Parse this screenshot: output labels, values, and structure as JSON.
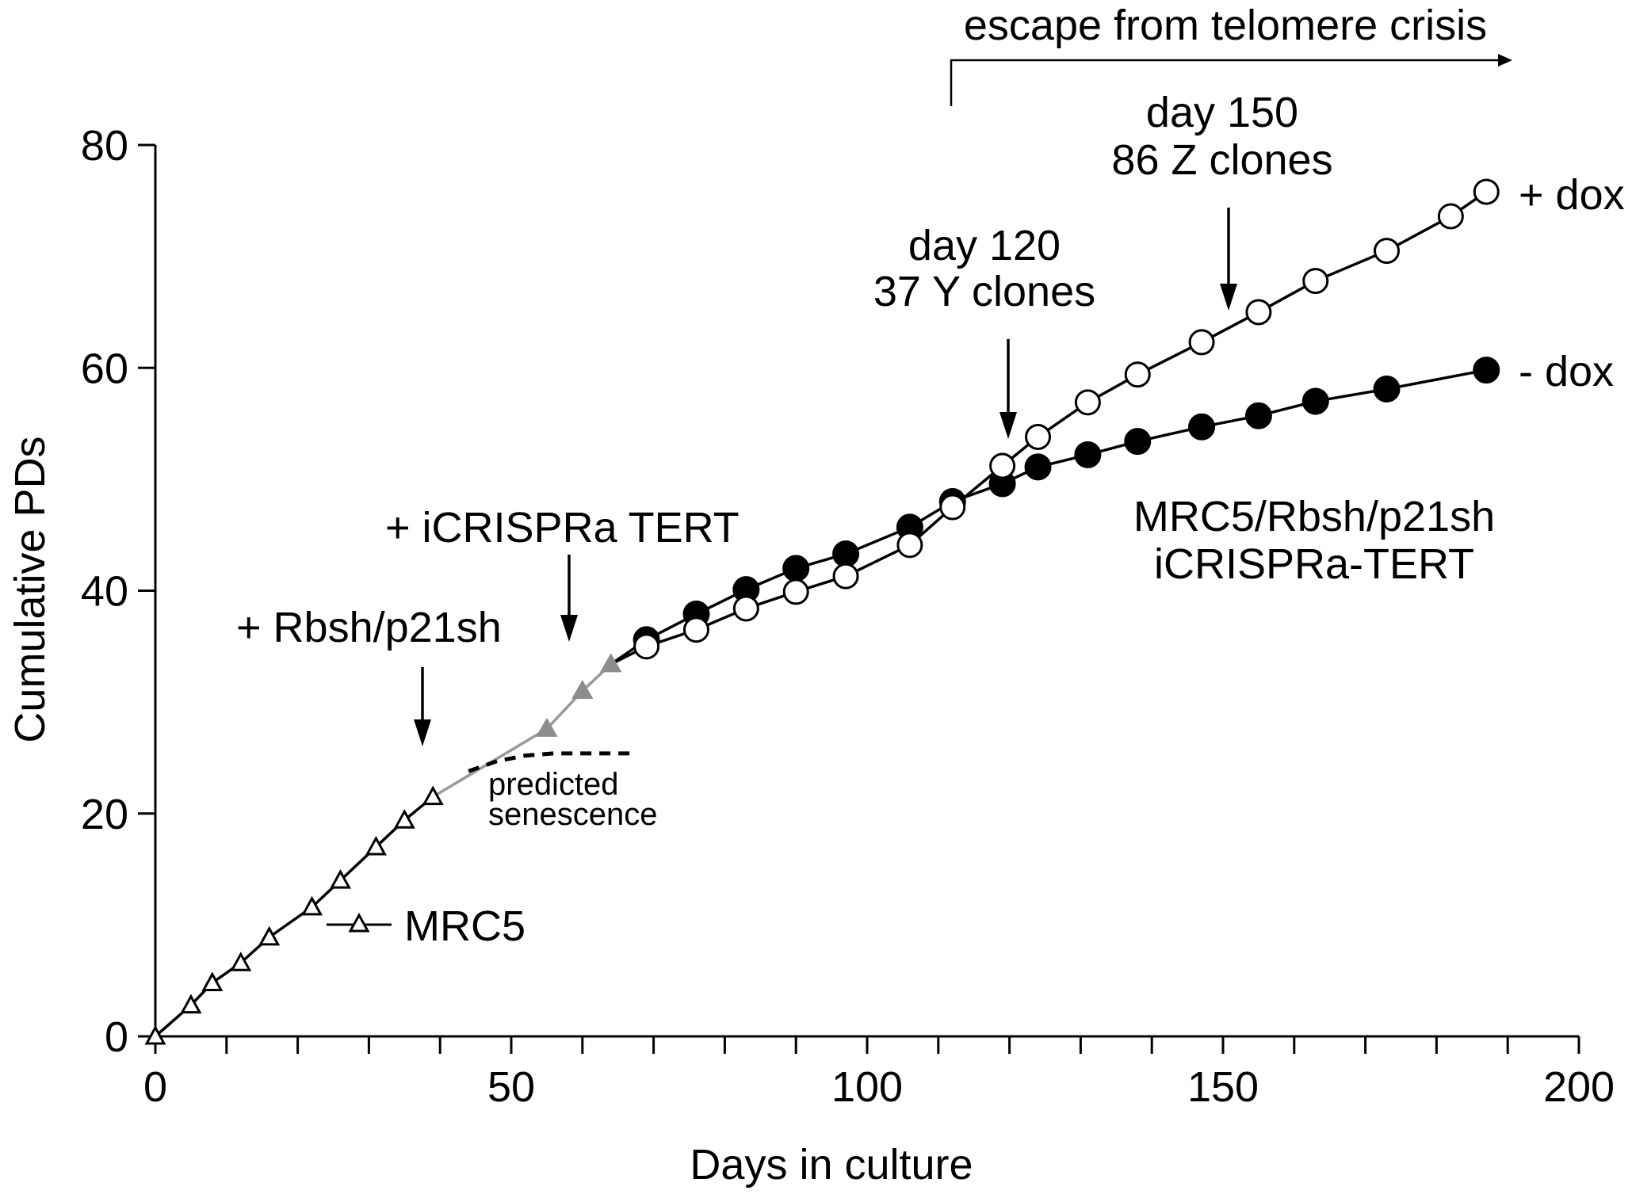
{
  "chart_data": {
    "type": "line",
    "xlabel": "Days in culture",
    "ylabel": "Cumulative PDs",
    "xlim": [
      0,
      200
    ],
    "ylim": [
      0,
      80
    ],
    "xticks": [
      0,
      50,
      100,
      150,
      200
    ],
    "yticks": [
      0,
      20,
      40,
      60,
      80
    ],
    "x_minor_step": 10,
    "grid": false,
    "series": [
      {
        "name": "MRC5",
        "marker": "open-triangle",
        "color": "#000000",
        "line_color": "#000000",
        "x": [
          0,
          5,
          8,
          12,
          16,
          22,
          26,
          31,
          35,
          39
        ],
        "y": [
          0,
          2.8,
          4.8,
          6.6,
          8.9,
          11.6,
          14.0,
          17.0,
          19.4,
          21.5
        ]
      },
      {
        "name": "+ Rbsh/p21sh",
        "marker": "filled-triangle",
        "color": "#8c8c8c",
        "line_color": "#999999",
        "x": [
          39,
          55,
          60,
          64
        ],
        "y": [
          21.5,
          27.6,
          31.0,
          33.4
        ]
      },
      {
        "name": "+ dox",
        "marker": "open-circle",
        "color": "#000000",
        "line_color": "#000000",
        "x": [
          64,
          69,
          76,
          83,
          90,
          97,
          106,
          112,
          119,
          124,
          131,
          138,
          147,
          155,
          163,
          173,
          182,
          187
        ],
        "y": [
          33.4,
          35.0,
          36.5,
          38.4,
          39.9,
          41.3,
          44.1,
          47.5,
          51.2,
          53.8,
          56.9,
          59.4,
          62.3,
          65.0,
          67.8,
          70.5,
          73.6,
          75.8
        ]
      },
      {
        "name": "- dox",
        "marker": "filled-circle",
        "color": "#000000",
        "line_color": "#000000",
        "x": [
          64,
          69,
          76,
          83,
          90,
          97,
          106,
          112,
          119,
          124,
          131,
          138,
          147,
          155,
          163,
          173,
          187
        ],
        "y": [
          33.4,
          35.6,
          37.9,
          40.1,
          42.0,
          43.3,
          45.7,
          48.0,
          49.6,
          51.1,
          52.2,
          53.4,
          54.7,
          55.7,
          57.0,
          58.1,
          59.8
        ]
      }
    ],
    "predicted_senescence": {
      "x": [
        44,
        48,
        52,
        56,
        60,
        64,
        67
      ],
      "y": [
        23.8,
        24.7,
        25.2,
        25.4,
        25.4,
        25.4,
        25.4
      ]
    },
    "annotations": {
      "mrc5_legend": "MRC5",
      "rbsh": "+ Rbsh/p21sh",
      "icrispra": "+ iCRISPRa TERT",
      "predicted_1": "predicted",
      "predicted_2": "senescence",
      "day120_1": "day 120",
      "day120_2": "37 Y clones",
      "day150_1": "day 150",
      "day150_2": "86 Z clones",
      "escape": "escape from telomere crisis",
      "plus_dox": "+ dox",
      "minus_dox": "- dox",
      "cell_line_1": "MRC5/Rbsh/p21sh",
      "cell_line_2": "iCRISPRa-TERT"
    },
    "annotation_colors": {
      "day120": "#999999",
      "day150": "#666666"
    }
  }
}
